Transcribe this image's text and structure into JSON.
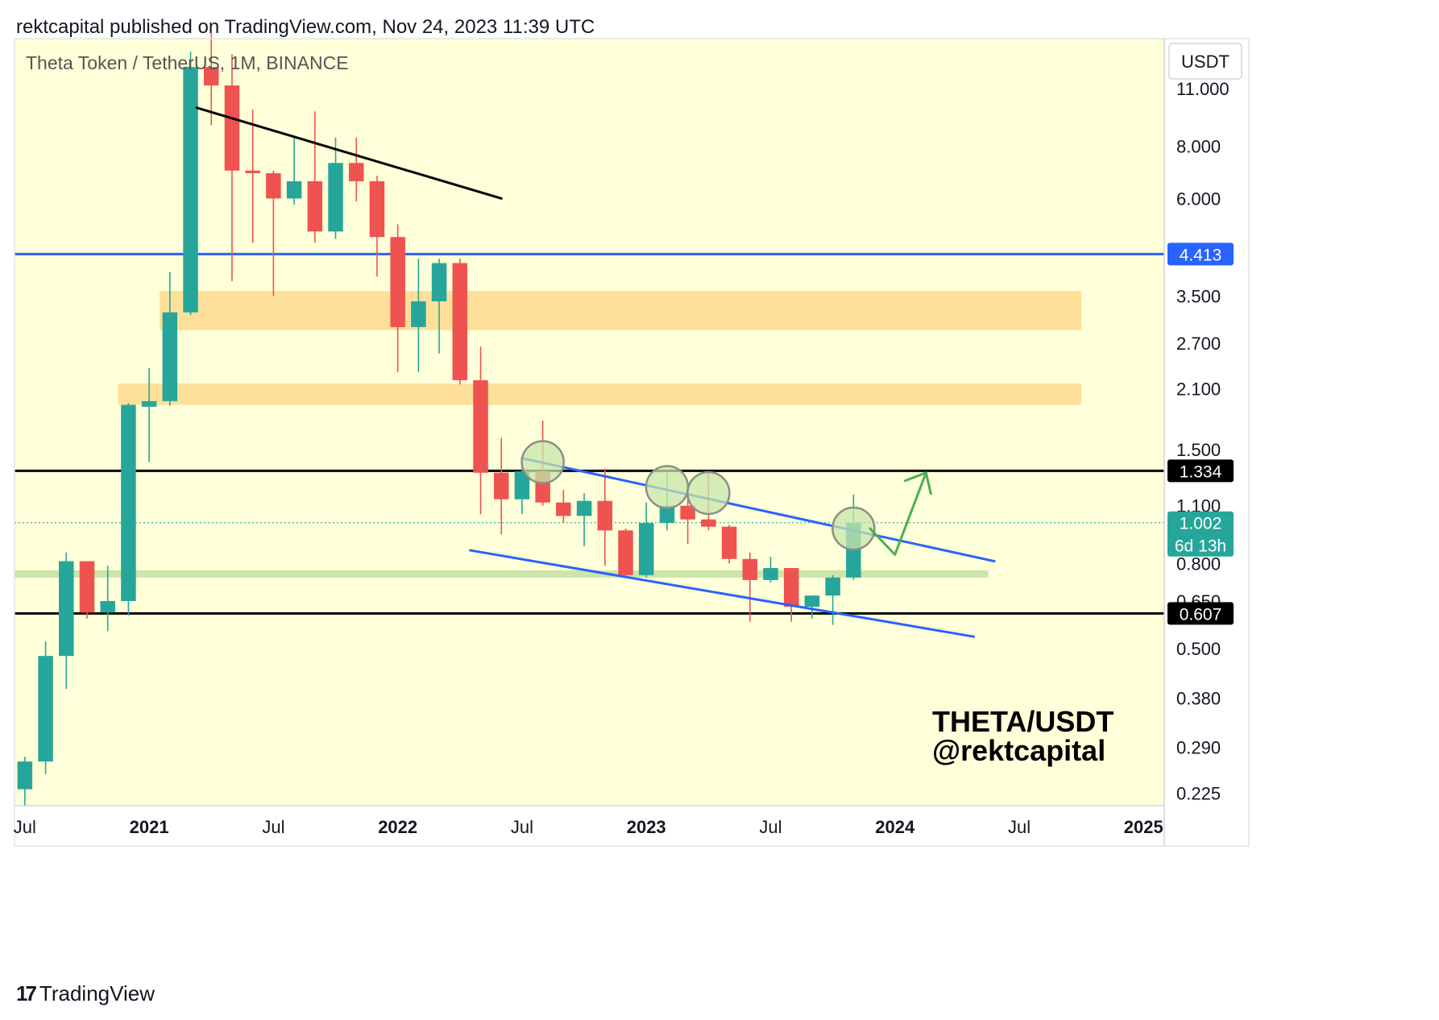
{
  "header": {
    "publisher_line": "rektcapital published on TradingView.com, Nov 24, 2023 11:39 UTC"
  },
  "footer": {
    "brand": "TradingView"
  },
  "colors": {
    "background": "#FFFFD9",
    "bull": "#26A69A",
    "bear": "#EF5350",
    "support_zone": "#FFE09A",
    "green_zone": "#CBE6A8",
    "blue_line": "#2962FF",
    "black_line": "#000000",
    "arrow": "#4CAF50"
  },
  "chart_data": {
    "type": "candlestick",
    "title": "Theta Token / TetherUS, 1M, BINANCE",
    "currency": "USDT",
    "scale": "log",
    "ylim": [
      0.21,
      14.5
    ],
    "xlim": [
      "2020-07",
      "2025-02"
    ],
    "y_ticks": [
      "11.000",
      "8.000",
      "6.000",
      "3.500",
      "2.700",
      "2.100",
      "1.500",
      "1.100",
      "0.800",
      "0.650",
      "0.500",
      "0.380",
      "0.290",
      "0.225"
    ],
    "x_ticks": [
      {
        "label": "Jul",
        "t": 0,
        "bold": false
      },
      {
        "label": "2021",
        "t": 6,
        "bold": true
      },
      {
        "label": "Jul",
        "t": 12,
        "bold": false
      },
      {
        "label": "2022",
        "t": 18,
        "bold": true
      },
      {
        "label": "Jul",
        "t": 24,
        "bold": false
      },
      {
        "label": "2023",
        "t": 30,
        "bold": true
      },
      {
        "label": "Jul",
        "t": 36,
        "bold": false
      },
      {
        "label": "2024",
        "t": 42,
        "bold": true
      },
      {
        "label": "Jul",
        "t": 48,
        "bold": false
      },
      {
        "label": "2025",
        "t": 54,
        "bold": true
      }
    ],
    "candles": [
      {
        "date": "2020-07",
        "o": 0.23,
        "h": 0.275,
        "l": 0.21,
        "c": 0.268
      },
      {
        "date": "2020-08",
        "o": 0.268,
        "h": 0.52,
        "l": 0.25,
        "c": 0.48
      },
      {
        "date": "2020-09",
        "o": 0.48,
        "h": 0.85,
        "l": 0.4,
        "c": 0.81
      },
      {
        "date": "2020-10",
        "o": 0.81,
        "h": 0.81,
        "l": 0.59,
        "c": 0.61
      },
      {
        "date": "2020-11",
        "o": 0.61,
        "h": 0.79,
        "l": 0.55,
        "c": 0.65
      },
      {
        "date": "2020-12",
        "o": 0.65,
        "h": 1.94,
        "l": 0.6,
        "c": 1.92
      },
      {
        "date": "2021-01",
        "o": 1.9,
        "h": 2.35,
        "l": 1.4,
        "c": 1.96
      },
      {
        "date": "2021-02",
        "o": 1.96,
        "h": 4.0,
        "l": 1.91,
        "c": 3.2
      },
      {
        "date": "2021-03",
        "o": 3.2,
        "h": 13.5,
        "l": 3.15,
        "c": 12.4
      },
      {
        "date": "2021-04",
        "o": 12.4,
        "h": 15.0,
        "l": 9.0,
        "c": 11.2
      },
      {
        "date": "2021-05",
        "o": 11.2,
        "h": 13.3,
        "l": 3.8,
        "c": 7.0
      },
      {
        "date": "2021-06",
        "o": 7.0,
        "h": 9.8,
        "l": 4.7,
        "c": 6.9
      },
      {
        "date": "2021-07",
        "o": 6.9,
        "h": 7.0,
        "l": 3.5,
        "c": 6.0
      },
      {
        "date": "2021-08",
        "o": 6.0,
        "h": 8.4,
        "l": 5.8,
        "c": 6.6
      },
      {
        "date": "2021-09",
        "o": 6.6,
        "h": 9.7,
        "l": 4.7,
        "c": 5.0
      },
      {
        "date": "2021-10",
        "o": 5.0,
        "h": 8.4,
        "l": 4.8,
        "c": 7.3
      },
      {
        "date": "2021-11",
        "o": 7.3,
        "h": 8.4,
        "l": 5.9,
        "c": 6.6
      },
      {
        "date": "2021-12",
        "o": 6.6,
        "h": 6.8,
        "l": 3.9,
        "c": 4.85
      },
      {
        "date": "2022-01",
        "o": 4.85,
        "h": 5.2,
        "l": 2.3,
        "c": 2.95
      },
      {
        "date": "2022-02",
        "o": 2.95,
        "h": 4.3,
        "l": 2.3,
        "c": 3.4
      },
      {
        "date": "2022-03",
        "o": 3.4,
        "h": 4.3,
        "l": 2.55,
        "c": 4.2
      },
      {
        "date": "2022-04",
        "o": 4.2,
        "h": 4.3,
        "l": 2.15,
        "c": 2.2
      },
      {
        "date": "2022-05",
        "o": 2.2,
        "h": 2.65,
        "l": 1.05,
        "c": 1.32
      },
      {
        "date": "2022-06",
        "o": 1.32,
        "h": 1.6,
        "l": 0.94,
        "c": 1.14
      },
      {
        "date": "2022-07",
        "o": 1.14,
        "h": 1.43,
        "l": 1.05,
        "c": 1.33
      },
      {
        "date": "2022-08",
        "o": 1.33,
        "h": 1.76,
        "l": 1.1,
        "c": 1.12
      },
      {
        "date": "2022-09",
        "o": 1.12,
        "h": 1.2,
        "l": 1.0,
        "c": 1.04
      },
      {
        "date": "2022-10",
        "o": 1.04,
        "h": 1.18,
        "l": 0.88,
        "c": 1.13
      },
      {
        "date": "2022-11",
        "o": 1.13,
        "h": 1.35,
        "l": 0.79,
        "c": 0.96
      },
      {
        "date": "2022-12",
        "o": 0.96,
        "h": 0.97,
        "l": 0.74,
        "c": 0.75
      },
      {
        "date": "2023-01",
        "o": 0.75,
        "h": 1.12,
        "l": 0.74,
        "c": 1.0
      },
      {
        "date": "2023-02",
        "o": 1.0,
        "h": 1.32,
        "l": 0.96,
        "c": 1.1
      },
      {
        "date": "2023-03",
        "o": 1.1,
        "h": 1.25,
        "l": 0.89,
        "c": 1.02
      },
      {
        "date": "2023-04",
        "o": 1.02,
        "h": 1.33,
        "l": 0.96,
        "c": 0.98
      },
      {
        "date": "2023-05",
        "o": 0.98,
        "h": 0.99,
        "l": 0.8,
        "c": 0.82
      },
      {
        "date": "2023-06",
        "o": 0.82,
        "h": 0.85,
        "l": 0.58,
        "c": 0.73
      },
      {
        "date": "2023-07",
        "o": 0.73,
        "h": 0.83,
        "l": 0.72,
        "c": 0.78
      },
      {
        "date": "2023-08",
        "o": 0.78,
        "h": 0.78,
        "l": 0.58,
        "c": 0.63
      },
      {
        "date": "2023-09",
        "o": 0.63,
        "h": 0.67,
        "l": 0.59,
        "c": 0.67
      },
      {
        "date": "2023-10",
        "o": 0.67,
        "h": 0.75,
        "l": 0.57,
        "c": 0.74
      },
      {
        "date": "2023-11",
        "o": 0.74,
        "h": 1.17,
        "l": 0.73,
        "c": 1.002
      }
    ],
    "zones": [
      {
        "name": "upper-supply-zone",
        "y_low": 2.9,
        "y_high": 3.6,
        "t_start": 6.5,
        "t_end": 51.0,
        "color": "#FFE09A"
      },
      {
        "name": "lower-supply-zone",
        "y_low": 1.92,
        "y_high": 2.16,
        "t_start": 4.5,
        "t_end": 51.0,
        "color": "#FFE09A"
      },
      {
        "name": "green-demand-zone",
        "y_low": 0.74,
        "y_high": 0.77,
        "t_start": -0.5,
        "t_end": 46.5,
        "color": "#CBE6A8"
      }
    ],
    "horizontal_levels": [
      {
        "name": "level-4413",
        "value": 4.413,
        "label": "4.413",
        "color": "#2962FF",
        "style": "solid"
      },
      {
        "name": "level-1334",
        "value": 1.334,
        "label": "1.334",
        "color": "#000000",
        "style": "solid"
      },
      {
        "name": "level-0607",
        "value": 0.607,
        "label": "0.607",
        "color": "#000000",
        "style": "solid"
      },
      {
        "name": "current-price-line",
        "value": 1.002,
        "label": "1.002",
        "color": "#26A69A",
        "style": "dotted"
      }
    ],
    "current_price": {
      "value": "1.002",
      "countdown": "6d 13h"
    },
    "trendlines": [
      {
        "name": "black-downtrend-line",
        "t1": 8.3,
        "y1": 9.9,
        "t2": 23.0,
        "y2": 6.0,
        "color": "#000000"
      },
      {
        "name": "upper-channel-line",
        "t1": 24.0,
        "y1": 1.43,
        "t2": 46.8,
        "y2": 0.81,
        "color": "#2962FF"
      },
      {
        "name": "lower-channel-line",
        "t1": 21.5,
        "y1": 0.86,
        "t2": 45.8,
        "y2": 0.534,
        "color": "#2962FF"
      }
    ],
    "highlight_circles": [
      {
        "name": "retest-circle-1",
        "t": 25.0,
        "y": 1.4
      },
      {
        "name": "retest-circle-2",
        "t": 31.0,
        "y": 1.22
      },
      {
        "name": "retest-circle-3",
        "t": 33.0,
        "y": 1.18
      },
      {
        "name": "breakout-circle",
        "t": 40.0,
        "y": 0.97
      }
    ],
    "projection_arrow": {
      "points": [
        {
          "t": 40.8,
          "y": 0.97
        },
        {
          "t": 42.0,
          "y": 0.84
        },
        {
          "t": 43.5,
          "y": 1.32
        }
      ],
      "arrowhead_at": {
        "t": 43.5,
        "y": 1.32
      },
      "color": "#4CAF50"
    },
    "watermark": {
      "line1": "THETA/USDT",
      "line2": "@rektcapital"
    }
  }
}
